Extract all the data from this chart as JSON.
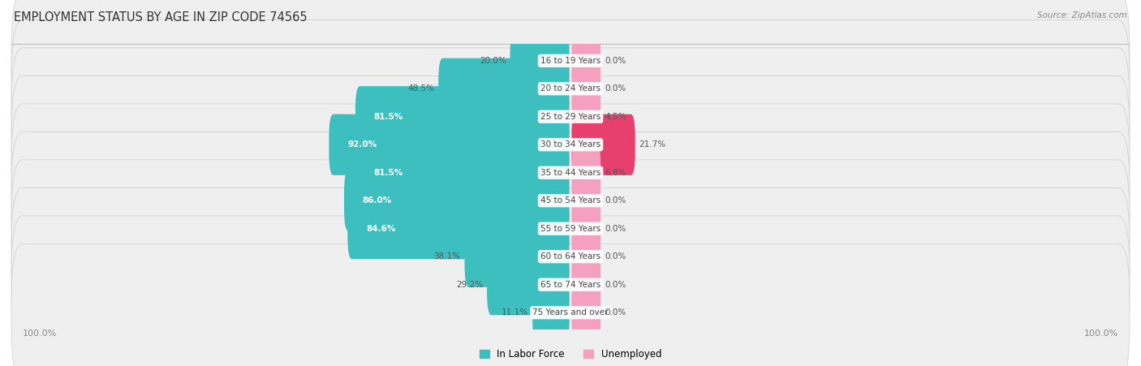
{
  "title": "EMPLOYMENT STATUS BY AGE IN ZIP CODE 74565",
  "source": "Source: ZipAtlas.com",
  "categories": [
    "16 to 19 Years",
    "20 to 24 Years",
    "25 to 29 Years",
    "30 to 34 Years",
    "35 to 44 Years",
    "45 to 54 Years",
    "55 to 59 Years",
    "60 to 64 Years",
    "65 to 74 Years",
    "75 Years and over"
  ],
  "in_labor_force": [
    20.0,
    48.5,
    81.5,
    92.0,
    81.5,
    86.0,
    84.6,
    38.1,
    29.2,
    11.1
  ],
  "unemployed": [
    0.0,
    0.0,
    4.5,
    21.7,
    6.8,
    0.0,
    0.0,
    0.0,
    0.0,
    0.0
  ],
  "labor_color": "#3dbfbf",
  "unemployed_color": "#f4a0be",
  "unemployed_highlight_color": "#e8406e",
  "row_bg_color": "#efefef",
  "label_color_inside": "#ffffff",
  "label_color_outside": "#555555",
  "center_label_color": "#444444",
  "axis_label_color": "#888888",
  "title_color": "#333333",
  "source_color": "#888888",
  "xlim": 100.0,
  "min_bar_display": 8.0,
  "legend_labor": "In Labor Force",
  "legend_unemployed": "Unemployed",
  "figsize": [
    14.06,
    4.51
  ],
  "dpi": 100
}
